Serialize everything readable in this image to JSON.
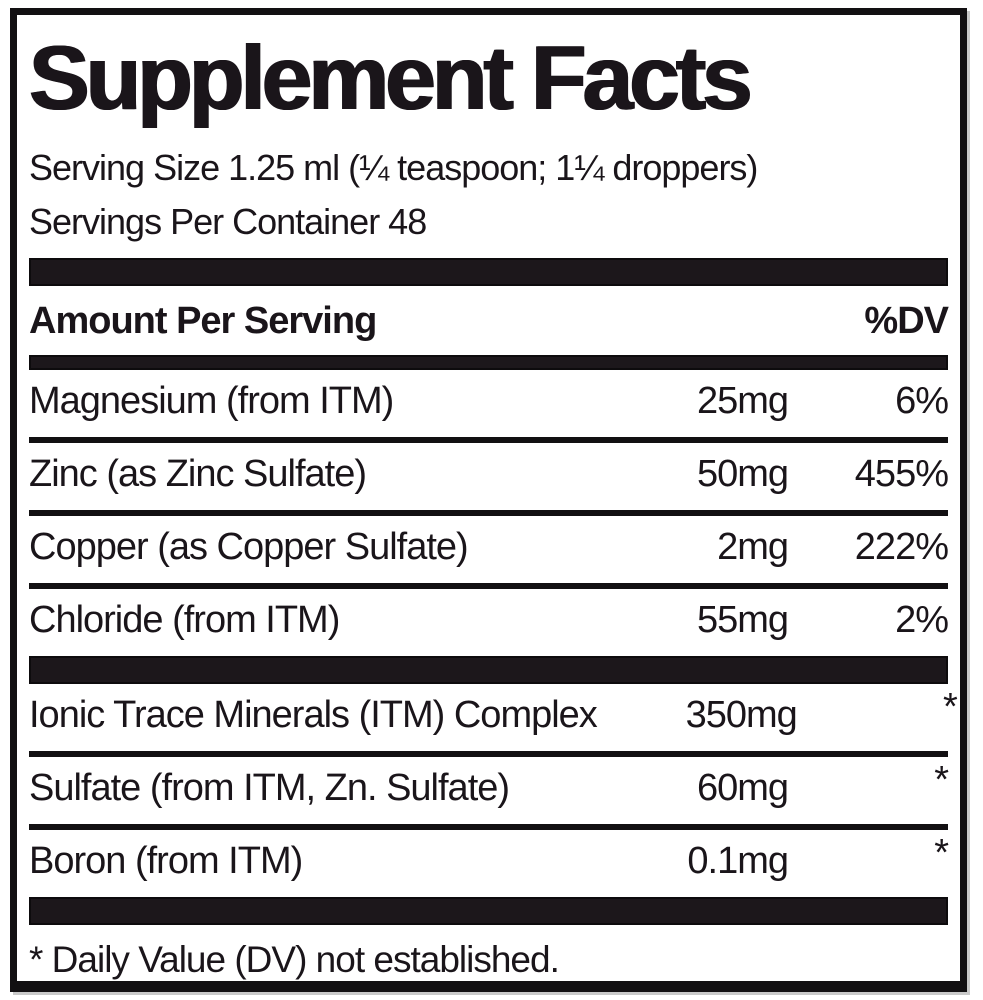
{
  "label": {
    "title": "Supplement Facts",
    "serving_size": "Serving Size 1.25 ml (¼ teaspoon; 1¼ droppers)",
    "servings_per_container": "Servings Per Container 48",
    "header": {
      "amount_per_serving": "Amount Per Serving",
      "dv": "%DV"
    },
    "nutrients": [
      {
        "name": "Magnesium (from ITM)",
        "amount": "25mg",
        "dv": "6%"
      },
      {
        "name": "Zinc (as Zinc Sulfate)",
        "amount": "50mg",
        "dv": "455%"
      },
      {
        "name": "Copper (as Copper Sulfate)",
        "amount": "2mg",
        "dv": "222%"
      },
      {
        "name": "Chloride (from ITM)",
        "amount": "55mg",
        "dv": "2%"
      }
    ],
    "secondary_nutrients": [
      {
        "name": "Ionic Trace Minerals (ITM) Complex",
        "amount": "350mg",
        "dv": "*"
      },
      {
        "name": "Sulfate (from ITM, Zn. Sulfate)",
        "amount": "60mg",
        "dv": "*"
      },
      {
        "name": "Boron (from ITM)",
        "amount": "0.1mg",
        "dv": "*"
      }
    ],
    "footnote": "* Daily Value (DV) not established.",
    "colors": {
      "background": "#ffffff",
      "text": "#1a151a",
      "bar": "#1c171b",
      "border": "#121012"
    }
  }
}
